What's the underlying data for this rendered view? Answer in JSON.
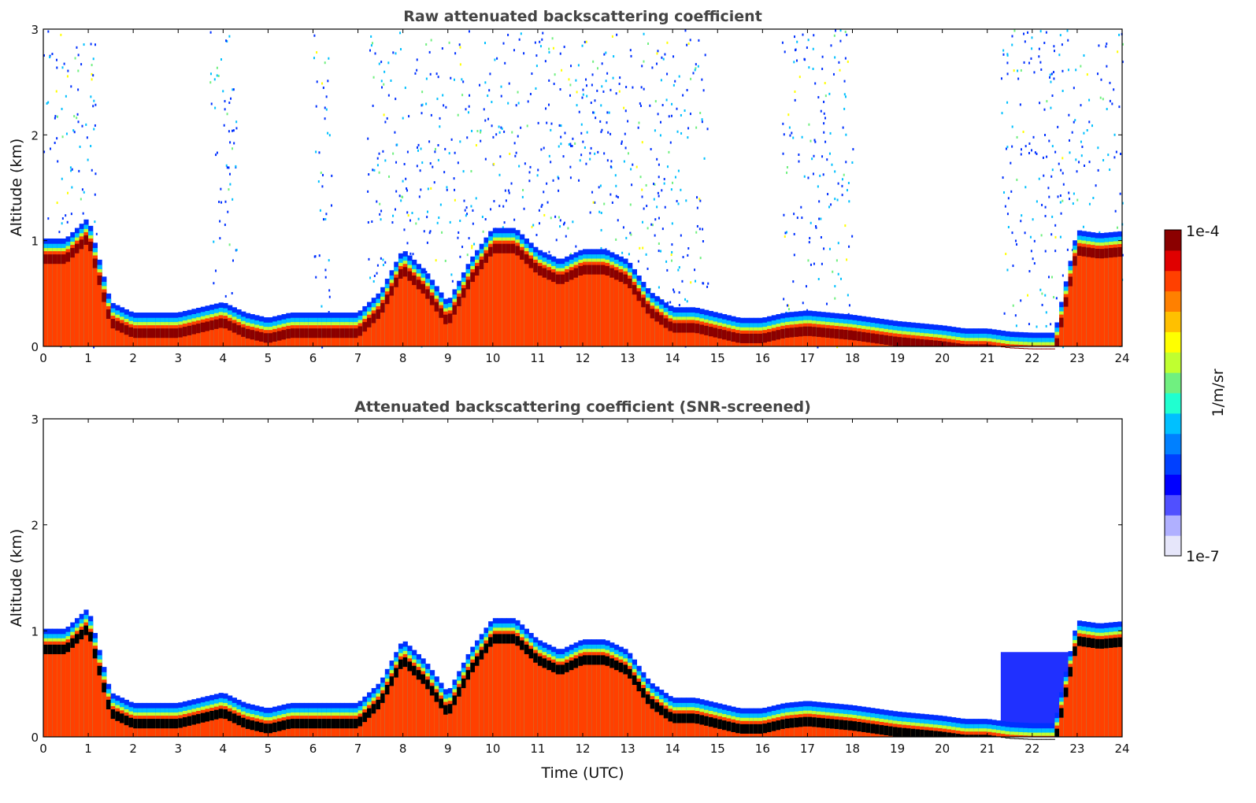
{
  "chart_data": [
    {
      "type": "heatmap",
      "title": "Raw attenuated backscattering coefficient",
      "xlabel": "",
      "ylabel": "Altitude (km)",
      "xlim": [
        0,
        24
      ],
      "ylim": [
        0,
        3
      ],
      "xticks": [
        "0",
        "1",
        "2",
        "3",
        "4",
        "5",
        "6",
        "7",
        "8",
        "9",
        "10",
        "11",
        "12",
        "13",
        "14",
        "15",
        "16",
        "17",
        "18",
        "19",
        "20",
        "21",
        "22",
        "23",
        "24"
      ],
      "yticks": [
        "0",
        "1",
        "2",
        "3"
      ],
      "noise_intervals_utc": [
        [
          0,
          1.2
        ],
        [
          3.7,
          4.3
        ],
        [
          6,
          6.4
        ],
        [
          7.2,
          14.8
        ],
        [
          16.4,
          18
        ],
        [
          21.3,
          24
        ]
      ],
      "band_color": "#8b0000"
    },
    {
      "type": "heatmap",
      "title": "Attenuated backscattering coefficient (SNR-screened)",
      "xlabel": "Time (UTC)",
      "ylabel": "Altitude (km)",
      "xlim": [
        0,
        24
      ],
      "ylim": [
        0,
        3
      ],
      "xticks": [
        "0",
        "1",
        "2",
        "3",
        "4",
        "5",
        "6",
        "7",
        "8",
        "9",
        "10",
        "11",
        "12",
        "13",
        "14",
        "15",
        "16",
        "17",
        "18",
        "19",
        "20",
        "21",
        "22",
        "23",
        "24"
      ],
      "yticks": [
        "0",
        "1",
        "2",
        "3"
      ],
      "band_color": "#000000"
    }
  ],
  "layer_top_km": {
    "time_utc": [
      0,
      0.5,
      1,
      1.5,
      2,
      2.5,
      3,
      3.5,
      4,
      4.5,
      5,
      5.5,
      6,
      6.5,
      7,
      7.5,
      8,
      8.5,
      9,
      9.5,
      10,
      10.5,
      11,
      11.5,
      12,
      12.5,
      13,
      13.5,
      14,
      14.5,
      15,
      15.5,
      16,
      16.5,
      17,
      17.5,
      18,
      18.5,
      19,
      19.5,
      20,
      20.5,
      21,
      21.5,
      22,
      22.5,
      23,
      23.5,
      24
    ],
    "altitude_km": [
      0.9,
      0.9,
      1.1,
      0.3,
      0.2,
      0.2,
      0.2,
      0.25,
      0.3,
      0.2,
      0.15,
      0.2,
      0.2,
      0.2,
      0.2,
      0.4,
      0.8,
      0.6,
      0.3,
      0.7,
      1.0,
      1.0,
      0.8,
      0.7,
      0.8,
      0.8,
      0.7,
      0.4,
      0.25,
      0.25,
      0.2,
      0.15,
      0.15,
      0.2,
      0.22,
      0.2,
      0.18,
      0.15,
      0.12,
      0.1,
      0.08,
      0.05,
      0.05,
      0.02,
      0.01,
      0.01,
      0.98,
      0.95,
      0.97
    ]
  },
  "colorbar": {
    "label": "1/m/sr",
    "max_label": "1e-4",
    "min_label": "1e-7",
    "scale": "log",
    "colors": [
      "#e6e6fa",
      "#b0b0ff",
      "#5050ff",
      "#0000ff",
      "#0040ff",
      "#0080ff",
      "#00c0ff",
      "#20ffd0",
      "#70f080",
      "#c0ff30",
      "#ffff00",
      "#ffc000",
      "#ff8000",
      "#ff4000",
      "#e00000",
      "#8b0000"
    ]
  }
}
